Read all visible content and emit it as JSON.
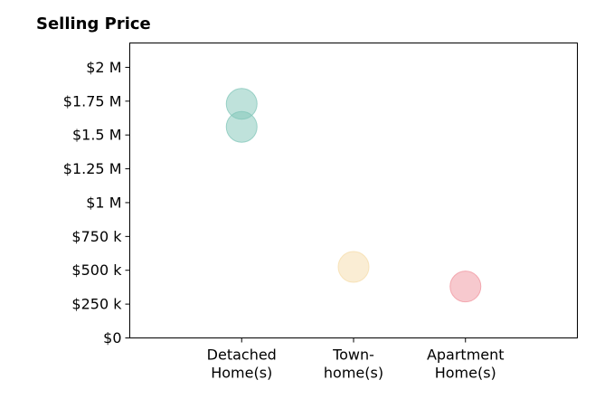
{
  "chart_data": {
    "type": "scatter",
    "title": "Selling Price",
    "xlabel": "",
    "ylabel": "",
    "categories": [
      [
        "Detached",
        "Home(s)"
      ],
      [
        "Town-",
        "home(s)"
      ],
      [
        "Apartment",
        "Home(s)"
      ]
    ],
    "y_ticks": [
      "$0",
      "$250 k",
      "$500 k",
      "$750 k",
      "$1 M",
      "$1.25 M",
      "$1.5 M",
      "$1.75 M",
      "$2 M"
    ],
    "y_tick_values": [
      0,
      250000,
      500000,
      750000,
      1000000,
      1250000,
      1500000,
      1750000,
      2000000
    ],
    "ylim": [
      0,
      2180000
    ],
    "xlim": [
      -1,
      3
    ],
    "grid": false,
    "points": [
      {
        "category": 0,
        "y": 1730000,
        "color": "#80c5b8"
      },
      {
        "category": 0,
        "y": 1560000,
        "color": "#80c5b8"
      },
      {
        "category": 1,
        "y": 525000,
        "color": "#f5dcaa"
      },
      {
        "category": 2,
        "y": 380000,
        "color": "#f0949e"
      }
    ]
  }
}
